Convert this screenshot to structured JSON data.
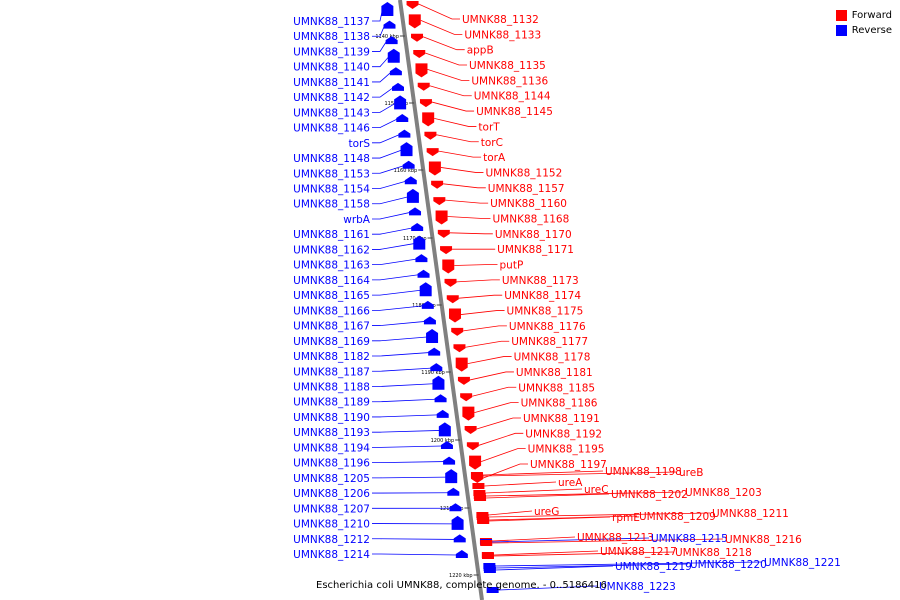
{
  "colors": {
    "forward": "#ff0000",
    "reverse": "#0000ff",
    "axis": "#808080",
    "leader_forward": "#ff0000",
    "leader_reverse": "#0000ff"
  },
  "legend": {
    "forward_label": "Forward",
    "reverse_label": "Reverse"
  },
  "caption": "Escherichia coli UMNK88, complete genome. - 0..5186416",
  "ticks": [
    "1140 kbp",
    "1150 kbp",
    "1160 kbp",
    "1170 kbp",
    "1180 kbp",
    "1190 kbp",
    "1200 kbp",
    "1210 kbp",
    "1220 kbp"
  ],
  "reverse_genes": [
    "UMNK88_1137",
    "UMNK88_1138",
    "UMNK88_1139",
    "UMNK88_1140",
    "UMNK88_1141",
    "UMNK88_1142",
    "UMNK88_1143",
    "UMNK88_1146",
    "torS",
    "UMNK88_1148",
    "UMNK88_1153",
    "UMNK88_1154",
    "UMNK88_1158",
    "wrbA",
    "UMNK88_1161",
    "UMNK88_1162",
    "UMNK88_1163",
    "UMNK88_1164",
    "UMNK88_1165",
    "UMNK88_1166",
    "UMNK88_1167",
    "UMNK88_1169",
    "UMNK88_1182",
    "UMNK88_1187",
    "UMNK88_1188",
    "UMNK88_1189",
    "UMNK88_1190",
    "UMNK88_1193",
    "UMNK88_1194",
    "UMNK88_1196",
    "UMNK88_1205",
    "UMNK88_1206",
    "UMNK88_1207",
    "UMNK88_1210",
    "UMNK88_1212",
    "UMNK88_1214"
  ],
  "forward_genes": [
    "UMNK88_1132",
    "UMNK88_1133",
    "appB",
    "UMNK88_1135",
    "UMNK88_1136",
    "UMNK88_1144",
    "UMNK88_1145",
    "torT",
    "torC",
    "torA",
    "UMNK88_1152",
    "UMNK88_1157",
    "UMNK88_1160",
    "UMNK88_1168",
    "UMNK88_1170",
    "UMNK88_1171",
    "putP",
    "UMNK88_1173",
    "UMNK88_1174",
    "UMNK88_1175",
    "UMNK88_1176",
    "UMNK88_1177",
    "UMNK88_1178",
    "UMNK88_1181",
    "UMNK88_1185",
    "UMNK88_1186",
    "UMNK88_1191",
    "UMNK88_1192",
    "UMNK88_1195",
    "UMNK88_1197"
  ],
  "tail_genes": [
    {
      "name": "UMNK88_1198",
      "strand": "forward"
    },
    {
      "name": "ureB",
      "strand": "forward"
    },
    {
      "name": "ureA",
      "strand": "forward"
    },
    {
      "name": "ureC",
      "strand": "forward"
    },
    {
      "name": "UMNK88_1202",
      "strand": "forward"
    },
    {
      "name": "UMNK88_1203",
      "strand": "forward"
    },
    {
      "name": "ureG",
      "strand": "forward"
    },
    {
      "name": "rpmE",
      "strand": "forward"
    },
    {
      "name": "UMNK88_1209",
      "strand": "forward"
    },
    {
      "name": "UMNK88_1211",
      "strand": "forward"
    },
    {
      "name": "UMNK88_1213",
      "strand": "forward"
    },
    {
      "name": "UMNK88_1215",
      "strand": "reverse"
    },
    {
      "name": "UMNK88_1216",
      "strand": "forward"
    },
    {
      "name": "UMNK88_1217",
      "strand": "forward"
    },
    {
      "name": "UMNK88_1218",
      "strand": "forward"
    },
    {
      "name": "UMNK88_1219",
      "strand": "reverse"
    },
    {
      "name": "UMNK88_1220",
      "strand": "reverse"
    },
    {
      "name": "UMNK88_1221",
      "strand": "reverse"
    },
    {
      "name": "UMNK88_1223",
      "strand": "reverse"
    }
  ]
}
